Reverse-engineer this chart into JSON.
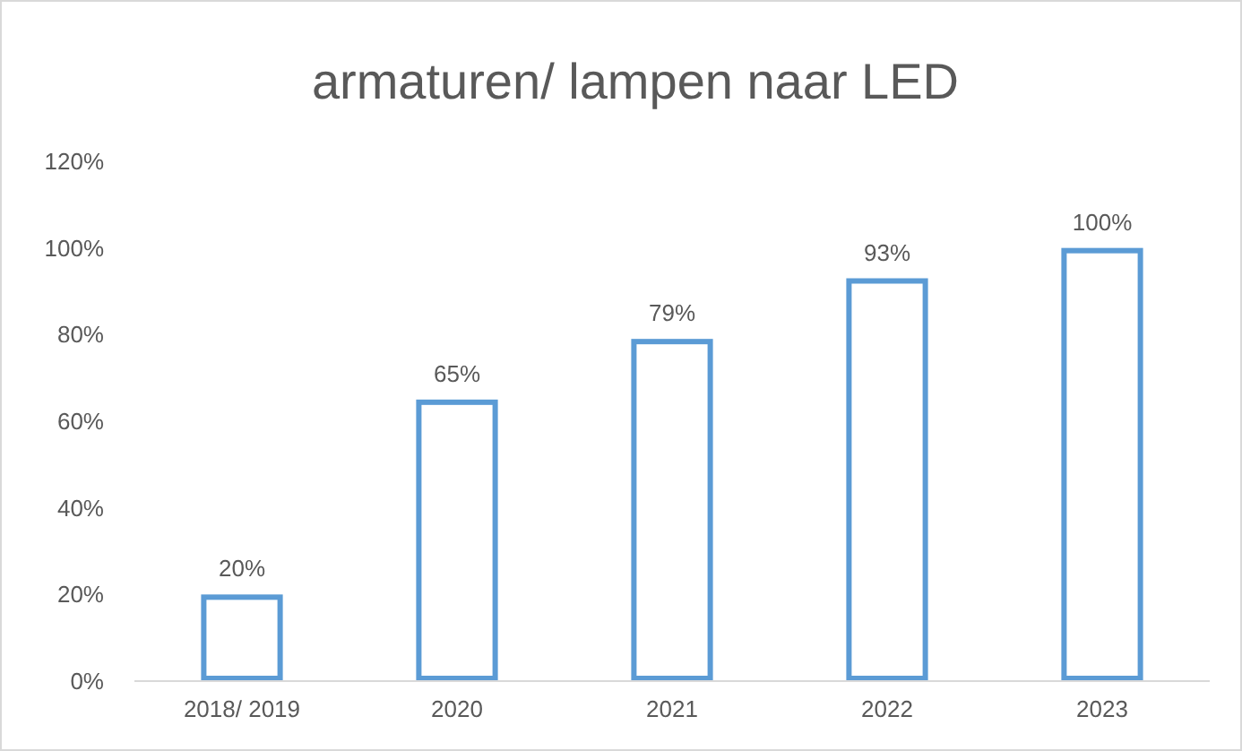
{
  "chart_data": {
    "type": "bar",
    "title": "armaturen/ lampen naar LED",
    "categories": [
      "2018/ 2019",
      "2020",
      "2021",
      "2022",
      "2023"
    ],
    "values": [
      20,
      65,
      79,
      93,
      100
    ],
    "value_labels": [
      "20%",
      "65%",
      "79%",
      "93%",
      "100%"
    ],
    "color": "#5b9bd5",
    "ylim": [
      0,
      120
    ],
    "yticks": [
      {
        "value": 0,
        "label": "0%"
      },
      {
        "value": 20,
        "label": "20%"
      },
      {
        "value": 40,
        "label": "40%"
      },
      {
        "value": 60,
        "label": "60%"
      },
      {
        "value": 80,
        "label": "80%"
      },
      {
        "value": 100,
        "label": "100%"
      },
      {
        "value": 120,
        "label": "120%"
      }
    ],
    "grid": false
  }
}
